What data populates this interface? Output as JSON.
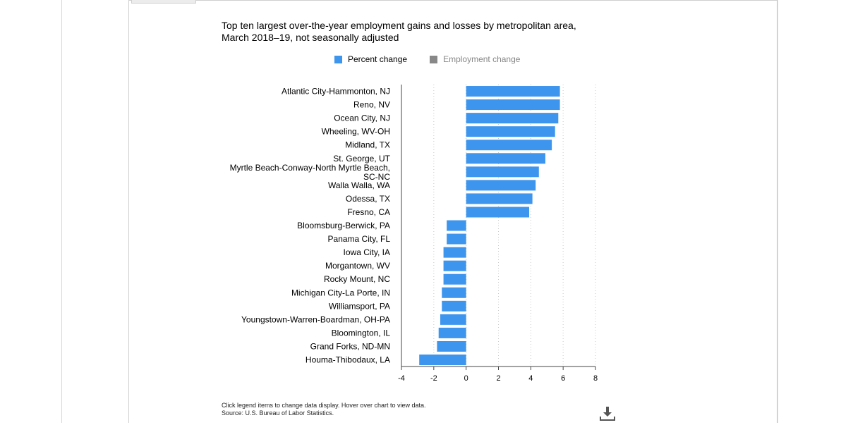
{
  "chart_data": {
    "type": "bar",
    "orientation": "horizontal",
    "title": "Top ten largest over-the-year employment gains and losses by metropolitan area, March 2018–19, not seasonally adjusted",
    "legend": [
      {
        "label": "Percent change",
        "color": "#3d95ee",
        "active": true
      },
      {
        "label": "Employment change",
        "color": "#888888",
        "active": false
      }
    ],
    "categories": [
      "Atlantic City-Hammonton, NJ",
      "Reno, NV",
      "Ocean City, NJ",
      "Wheeling, WV-OH",
      "Midland, TX",
      "St. George, UT",
      "Myrtle Beach-Conway-North Myrtle Beach, SC-NC",
      "Walla Walla, WA",
      "Odessa, TX",
      "Fresno, CA",
      "Bloomsburg-Berwick, PA",
      "Panama City, FL",
      "Iowa City, IA",
      "Morgantown, WV",
      "Rocky Mount, NC",
      "Michigan City-La Porte, IN",
      "Williamsport, PA",
      "Youngstown-Warren-Boardman, OH-PA",
      "Bloomington, IL",
      "Grand Forks, ND-MN",
      "Houma-Thibodaux, LA"
    ],
    "series": [
      {
        "name": "Percent change",
        "color": "#3d95ee",
        "values": [
          5.8,
          5.8,
          5.7,
          5.5,
          5.3,
          4.9,
          4.5,
          4.3,
          4.1,
          3.9,
          -1.2,
          -1.2,
          -1.4,
          -1.4,
          -1.4,
          -1.5,
          -1.5,
          -1.6,
          -1.7,
          -1.8,
          -2.9
        ]
      }
    ],
    "xlim": [
      -4,
      8
    ],
    "xticks": [
      -4,
      -2,
      0,
      2,
      4,
      6,
      8
    ],
    "grid": "vertical dotted"
  },
  "footer": {
    "line1": "Click legend items to change data display. Hover over chart to view data.",
    "line2": "Source: U.S. Bureau of Labor Statistics."
  },
  "icons": {
    "download": "download-icon"
  }
}
